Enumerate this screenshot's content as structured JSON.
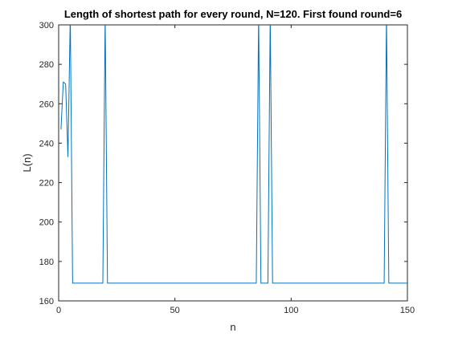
{
  "chart_data": {
    "type": "line",
    "title": "Length of shortest path for every round, N=120. First found round=6",
    "xlabel": "n",
    "ylabel": "L(n)",
    "xlim": [
      0,
      150
    ],
    "ylim": [
      160,
      300
    ],
    "xticks": [
      0,
      50,
      100,
      150
    ],
    "yticks": [
      160,
      180,
      200,
      220,
      240,
      260,
      280,
      300
    ],
    "grid": false,
    "color": "#0072BD",
    "series": [
      {
        "x": [
          1,
          2,
          3,
          4,
          5,
          6,
          7,
          19,
          20,
          21,
          85,
          86,
          87,
          90,
          91,
          92,
          140,
          141,
          142,
          150
        ],
        "y": [
          247,
          271,
          270,
          233,
          305,
          169,
          169,
          169,
          305,
          169,
          169,
          305,
          169,
          169,
          305,
          169,
          169,
          305,
          169,
          169
        ]
      }
    ]
  }
}
